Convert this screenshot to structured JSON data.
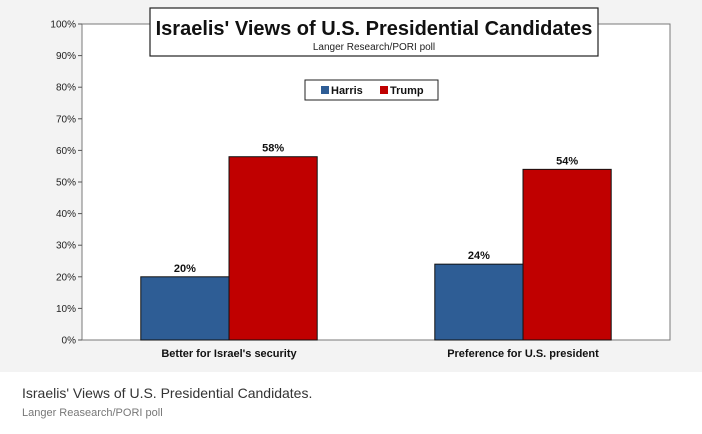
{
  "chart_data": {
    "type": "bar",
    "title": "Israelis' Views of U.S. Presidential Candidates",
    "subtitle": "Langer Research/PORI poll",
    "categories": [
      "Better for Israel's security",
      "Preference for U.S. president"
    ],
    "series": [
      {
        "name": "Harris",
        "color": "#2e5d95",
        "values": [
          20,
          24
        ]
      },
      {
        "name": "Trump",
        "color": "#c00000",
        "values": [
          58,
          54
        ]
      }
    ],
    "ylim": [
      0,
      100
    ],
    "yticks": [
      0,
      10,
      20,
      30,
      40,
      50,
      60,
      70,
      80,
      90,
      100
    ],
    "tick_suffix": "%",
    "xlabel": "",
    "ylabel": "",
    "legend_position": "top-center"
  },
  "caption": {
    "text": "Israelis' Views of U.S. Presidential Candidates.",
    "credit": "Langer Reasearch/PORI poll"
  }
}
